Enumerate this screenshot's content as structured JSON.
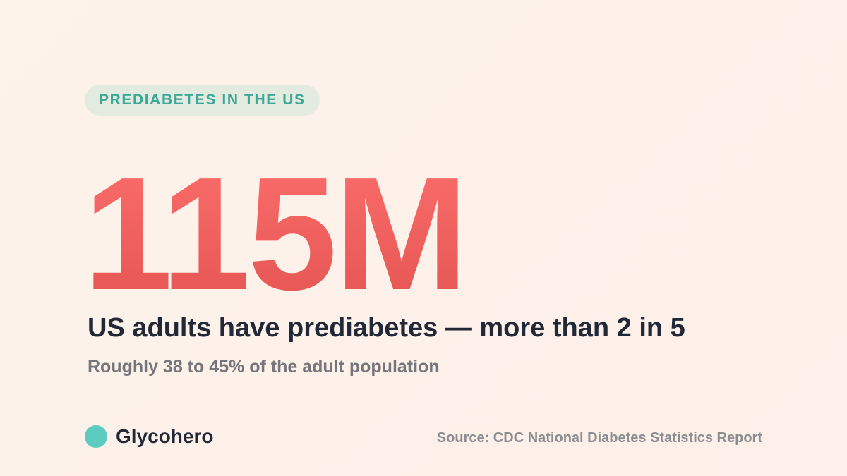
{
  "tag": "PREDIABETES IN THE US",
  "headline": "115M",
  "subhead": "US adults have prediabetes — more than 2 in 5",
  "detail": "Roughly 38 to 45% of the adult population",
  "brand": "Glycohero",
  "source": "Source: CDC National Diabetes Statistics Report"
}
